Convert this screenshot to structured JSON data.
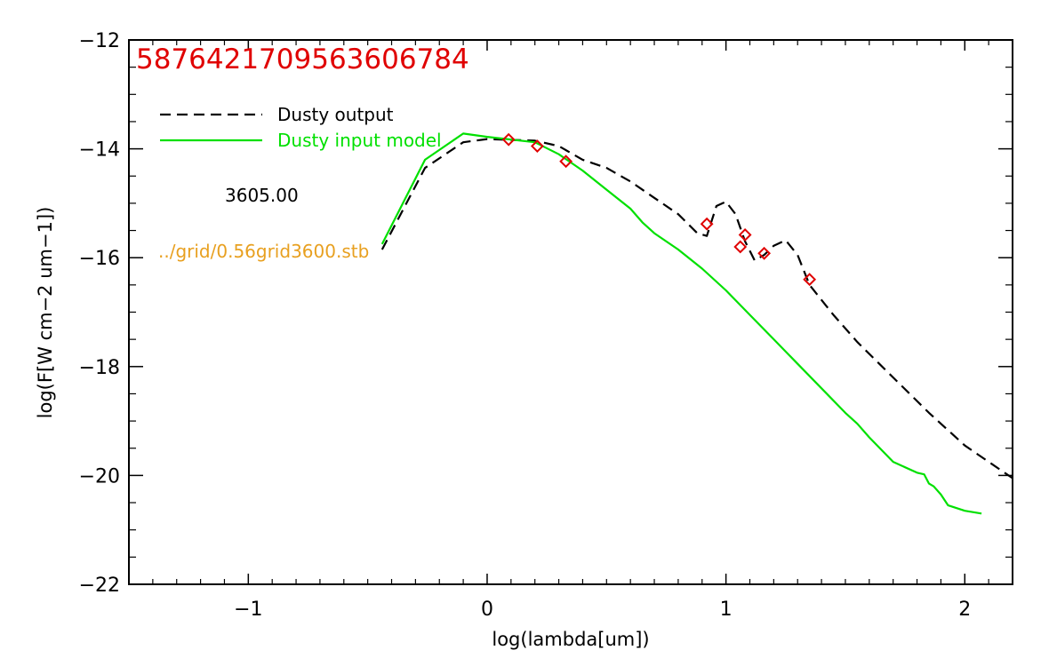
{
  "chart_data": {
    "type": "line",
    "title": "587642170956360678‍4",
    "xlabel": "log(lambda[um])",
    "ylabel": "log(F[W cm−2 um−1])",
    "xlim": [
      -1.5,
      2.2
    ],
    "ylim": [
      -22,
      -12
    ],
    "x_ticks": [
      -1,
      0,
      1,
      2
    ],
    "y_ticks": [
      -22,
      -20,
      -18,
      -16,
      -14,
      -12
    ],
    "x_tick_labels": [
      "−1",
      "0",
      "1",
      "2"
    ],
    "y_tick_labels": [
      "−22",
      "−20",
      "−18",
      "−16",
      "−14",
      "−12"
    ],
    "grid": false,
    "legend_position": "top-left",
    "series": [
      {
        "name": "Dusty output",
        "color": "#000000",
        "style": "dashed",
        "x": [
          -0.44,
          -0.26,
          -0.1,
          0.0,
          0.2,
          0.3,
          0.4,
          0.5,
          0.6,
          0.7,
          0.8,
          0.88,
          0.92,
          0.96,
          1.0,
          1.04,
          1.08,
          1.12,
          1.16,
          1.2,
          1.25,
          1.3,
          1.35,
          1.45,
          1.55,
          1.7,
          1.85,
          2.0,
          2.2
        ],
        "y": [
          -15.85,
          -14.35,
          -13.88,
          -13.82,
          -13.85,
          -13.95,
          -14.2,
          -14.35,
          -14.6,
          -14.9,
          -15.2,
          -15.55,
          -15.6,
          -15.05,
          -14.97,
          -15.2,
          -15.7,
          -16.05,
          -15.95,
          -15.78,
          -15.68,
          -15.95,
          -16.5,
          -17.05,
          -17.55,
          -18.2,
          -18.85,
          -19.45,
          -20.05
        ]
      },
      {
        "name": "Dusty input model",
        "color": "#00e000",
        "style": "solid",
        "x": [
          -0.44,
          -0.26,
          -0.1,
          0.0,
          0.2,
          0.3,
          0.4,
          0.5,
          0.6,
          0.65,
          0.7,
          0.8,
          0.9,
          1.0,
          1.1,
          1.2,
          1.3,
          1.4,
          1.5,
          1.55,
          1.6,
          1.7,
          1.8,
          1.83,
          1.85,
          1.87,
          1.9,
          1.93,
          2.0,
          2.07
        ],
        "y": [
          -15.75,
          -14.2,
          -13.72,
          -13.78,
          -13.88,
          -14.1,
          -14.4,
          -14.75,
          -15.1,
          -15.35,
          -15.55,
          -15.85,
          -16.2,
          -16.6,
          -17.05,
          -17.5,
          -17.95,
          -18.4,
          -18.85,
          -19.05,
          -19.3,
          -19.75,
          -19.95,
          -19.98,
          -20.15,
          -20.2,
          -20.35,
          -20.55,
          -20.65,
          -20.7
        ]
      },
      {
        "name": "",
        "color": "#e00000",
        "style": "markers",
        "x": [
          0.09,
          0.21,
          0.33,
          0.92,
          1.06,
          1.08,
          1.16,
          1.35
        ],
        "y": [
          -13.83,
          -13.95,
          -14.23,
          -15.38,
          -15.8,
          -15.58,
          -15.92,
          -16.4
        ]
      }
    ],
    "annotations": [
      {
        "text": "3605.00",
        "color": "#000000"
      },
      {
        "text": "../grid/0.56grid3600.stb",
        "color": "#e8a020"
      }
    ]
  },
  "colors": {
    "axes": "#000000",
    "title": "#e00000",
    "background": "#ffffff"
  }
}
